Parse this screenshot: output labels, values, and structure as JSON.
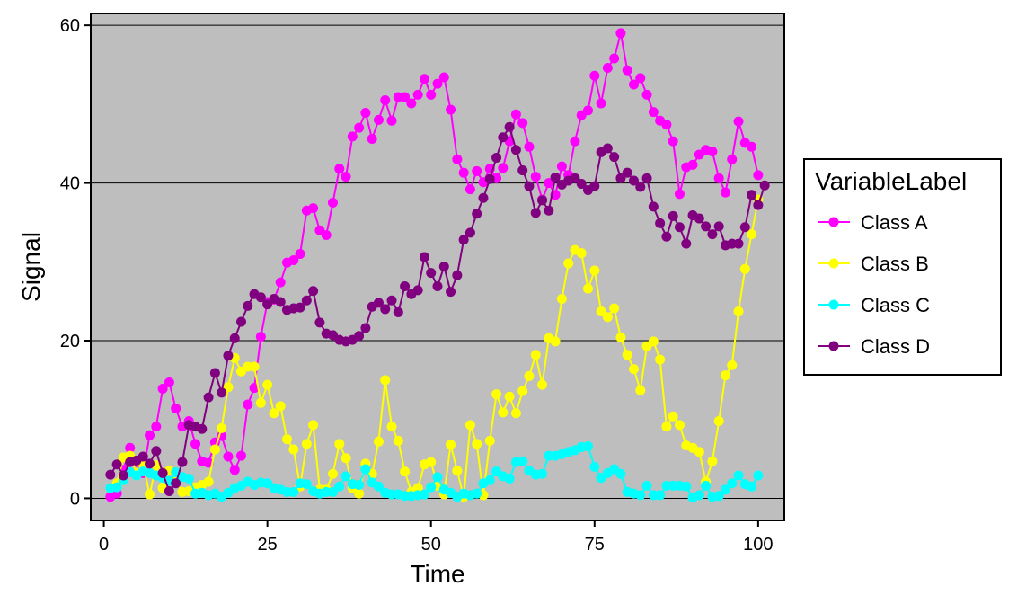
{
  "chart_data": {
    "type": "line",
    "xlabel": "Time",
    "ylabel": "Signal",
    "xlim": [
      -2,
      104
    ],
    "ylim": [
      -2.8,
      61.5
    ],
    "x_ticks": [
      0,
      25,
      50,
      75,
      100
    ],
    "y_ticks": [
      0,
      20,
      40,
      60
    ],
    "x_tick_labels": [
      "0",
      "25",
      "50",
      "75",
      "100"
    ],
    "y_tick_labels": [
      "0",
      "20",
      "40",
      "60"
    ],
    "grid": "horizontal major",
    "legend": {
      "title": "VariableLabel",
      "placement": "right"
    },
    "colors": {
      "panel_background": "#bebebe",
      "grid": "#000000"
    },
    "series": [
      {
        "name": "Class A",
        "color": "#ff00ff",
        "values": [
          0.2,
          0.6,
          3.6,
          6.4,
          4.6,
          3.2,
          8.0,
          9.1,
          13.9,
          14.7,
          11.4,
          9.1,
          9.8,
          6.9,
          4.7,
          4.5,
          7.1,
          7.9,
          5.3,
          3.6,
          5.4,
          11.9,
          14.0,
          20.5,
          24.9,
          25.2,
          27.4,
          29.9,
          30.2,
          31.0,
          36.5,
          36.8,
          34.0,
          33.4,
          37.5,
          41.8,
          40.8,
          45.9,
          47.0,
          48.9,
          45.6,
          48.0,
          50.5,
          47.9,
          50.9,
          50.9,
          50.1,
          51.2,
          53.2,
          51.2,
          52.6,
          53.4,
          49.3,
          43.0,
          41.3,
          39.2,
          41.5,
          40.1,
          41.8,
          40.6,
          41.9,
          45.3,
          48.7,
          47.6,
          44.6,
          40.8,
          37.9,
          40.0,
          38.5,
          42.1,
          41.0,
          45.3,
          48.6,
          49.2,
          53.6,
          50.1,
          54.6,
          55.8,
          59.0,
          54.3,
          52.5,
          53.3,
          51.2,
          49.0,
          47.9,
          47.4,
          45.3,
          38.6,
          42.0,
          42.3,
          43.6,
          44.2,
          44.0,
          40.6,
          38.8,
          43.0,
          47.8,
          45.1,
          44.6,
          41.0
        ]
      },
      {
        "name": "Class B",
        "color": "#ffff00",
        "values": [
          1.3,
          1.9,
          5.2,
          5.4,
          3.2,
          4.3,
          0.5,
          4.2,
          1.3,
          3.5,
          2.3,
          0.8,
          0.9,
          1.4,
          1.7,
          2.1,
          6.2,
          8.9,
          14.1,
          17.8,
          16.1,
          16.7,
          16.7,
          12.1,
          14.4,
          10.8,
          11.7,
          7.5,
          6.2,
          1.5,
          6.9,
          9.3,
          1.1,
          1.1,
          3.1,
          6.9,
          5.1,
          1.3,
          0.6,
          4.4,
          3.1,
          7.2,
          15.0,
          9.1,
          7.3,
          3.4,
          0.8,
          1.3,
          4.3,
          4.6,
          1.6,
          0.5,
          6.8,
          3.5,
          0.2,
          9.3,
          6.9,
          0.4,
          7.3,
          13.2,
          10.9,
          12.9,
          10.8,
          13.6,
          15.5,
          18.2,
          14.4,
          20.3,
          19.9,
          25.3,
          29.8,
          31.5,
          31.1,
          26.6,
          28.9,
          23.7,
          23.0,
          24.1,
          20.4,
          18.2,
          16.4,
          13.7,
          19.3,
          19.9,
          17.6,
          9.1,
          10.4,
          9.3,
          6.7,
          6.4,
          5.9,
          2.1,
          4.7,
          9.8,
          15.6,
          16.9,
          23.7,
          29.1,
          33.5,
          37.9
        ]
      },
      {
        "name": "Class C",
        "color": "#00ffff",
        "values": [
          1.3,
          1.4,
          2.3,
          3.3,
          2.9,
          3.4,
          3.2,
          2.9,
          2.6,
          2.2,
          3.3,
          2.7,
          2.5,
          0.6,
          0.7,
          0.4,
          0.6,
          0.2,
          0.7,
          1.3,
          1.6,
          2.1,
          1.7,
          2.0,
          1.9,
          1.3,
          1.1,
          0.8,
          0.8,
          1.9,
          1.8,
          0.9,
          0.6,
          0.8,
          0.8,
          1.5,
          2.8,
          1.8,
          1.7,
          3.7,
          2.0,
          1.5,
          0.7,
          0.5,
          0.5,
          0.3,
          0.3,
          0.4,
          0.5,
          1.4,
          2.7,
          1.1,
          0.7,
          0.2,
          0.6,
          0.4,
          0.6,
          1.9,
          2.3,
          3.4,
          2.8,
          2.5,
          4.6,
          4.7,
          3.5,
          3.0,
          3.1,
          5.4,
          5.4,
          5.6,
          5.9,
          6.1,
          6.5,
          6.6,
          4.0,
          2.6,
          3.2,
          3.7,
          3.1,
          0.8,
          0.6,
          0.4,
          1.6,
          0.4,
          0.4,
          1.6,
          1.6,
          1.6,
          1.5,
          0.1,
          0.4,
          1.6,
          0.2,
          0.3,
          1.1,
          1.9,
          2.9,
          1.8,
          1.5,
          2.9
        ]
      },
      {
        "name": "Class D",
        "color": "#800080",
        "values": [
          3.0,
          4.3,
          2.9,
          4.6,
          4.8,
          5.3,
          4.4,
          6.0,
          3.2,
          0.9,
          1.9,
          4.6,
          9.3,
          9.1,
          8.8,
          12.8,
          15.9,
          13.4,
          18.1,
          20.3,
          22.4,
          24.4,
          25.9,
          25.5,
          24.6,
          25.3,
          24.9,
          23.9,
          24.1,
          24.2,
          25.1,
          26.3,
          22.3,
          20.9,
          20.7,
          20.1,
          19.9,
          20.1,
          20.6,
          21.6,
          24.3,
          24.8,
          24.0,
          25.1,
          23.6,
          26.9,
          25.9,
          26.4,
          30.6,
          28.6,
          26.9,
          29.4,
          26.2,
          28.3,
          32.8,
          33.7,
          36.1,
          38.1,
          40.5,
          43.2,
          45.8,
          47.1,
          44.2,
          41.6,
          39.6,
          36.2,
          37.8,
          36.5,
          40.7,
          39.8,
          40.3,
          40.6,
          39.9,
          39.1,
          39.6,
          43.9,
          44.4,
          43.3,
          40.6,
          41.3,
          40.3,
          39.5,
          40.6,
          37.0,
          34.9,
          33.2,
          35.8,
          34.4,
          32.3,
          35.9,
          35.5,
          34.5,
          33.5,
          34.5,
          32.1,
          32.3,
          32.3,
          34.4,
          38.5,
          37.2,
          39.7
        ]
      }
    ]
  }
}
